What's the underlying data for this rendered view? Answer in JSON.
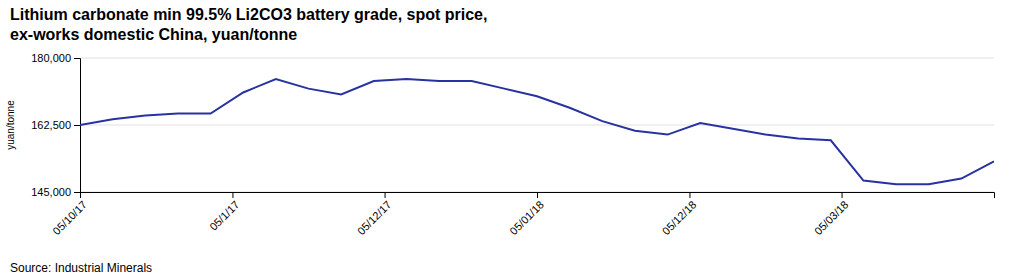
{
  "chart_data": {
    "type": "line",
    "title": "Lithium carbonate min 99.5% Li2CO3 battery grade, spot price,",
    "subtitle": "ex-works domestic China, yuan/tonne",
    "ylabel": "yuan/tonne",
    "source": "Source: Industrial Minerals",
    "x": [
      0,
      1,
      2,
      3,
      4,
      5,
      6,
      7,
      8,
      9,
      10,
      11,
      12,
      13,
      14,
      15,
      16,
      17,
      18,
      19,
      20,
      21,
      22,
      23,
      24,
      25,
      26,
      27,
      28
    ],
    "values": [
      162500,
      164000,
      165000,
      165500,
      165500,
      171000,
      174500,
      172000,
      170500,
      174000,
      174500,
      174000,
      174000,
      172000,
      170000,
      167000,
      163500,
      161000,
      160000,
      163000,
      161500,
      160000,
      159000,
      158500,
      148000,
      147000,
      147000,
      148500,
      153000
    ],
    "color": "#2832a0",
    "xlim": [
      0,
      28
    ],
    "xticks": [
      {
        "value": 0,
        "label": "05/10/17"
      },
      {
        "value": 4.67,
        "label": "05/1/17"
      },
      {
        "value": 9.33,
        "label": "05/12/17"
      },
      {
        "value": 14,
        "label": "05/01/18"
      },
      {
        "value": 18.67,
        "label": "05/12/18"
      },
      {
        "value": 23.33,
        "label": "05/03/18"
      }
    ],
    "ylim": [
      145000,
      180000
    ],
    "yticks": [
      {
        "value": 145000,
        "label": "145,000"
      },
      {
        "value": 162500,
        "label": "162,500"
      },
      {
        "value": 180000,
        "label": "180,000"
      }
    ],
    "grid": true
  }
}
